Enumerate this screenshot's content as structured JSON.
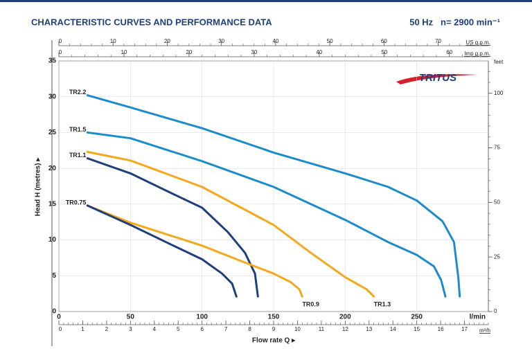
{
  "chart_data": {
    "type": "line",
    "title": "CHARACTERISTIC CURVES AND PERFORMANCE DATA",
    "subtitle": "50 Hz   n= 2900 min⁻¹",
    "logo": "TRITUS",
    "xlabel": "Flow rate Q ▸",
    "ylabel": "Head H (metres) ▸",
    "x_unit": "l/min",
    "xlim": [
      0,
      300
    ],
    "xticks": [
      0,
      50,
      100,
      150,
      200,
      250
    ],
    "ylim": [
      0,
      35
    ],
    "yticks": [
      0,
      5,
      10,
      15,
      20,
      25,
      30,
      35
    ],
    "grid": true,
    "us_axis": {
      "label": "US g.p.m.",
      "lim": [
        0,
        79.26
      ],
      "ticks": [
        0,
        10,
        20,
        30,
        40,
        50,
        60,
        70
      ]
    },
    "imp_axis": {
      "label": "Imp g.p.m.",
      "lim": [
        0,
        65.99
      ],
      "ticks": [
        0,
        10,
        20,
        30,
        40,
        50,
        60
      ]
    },
    "feet_axis": {
      "label": "feet",
      "lim": [
        0,
        114.83
      ],
      "ticks": [
        0,
        25,
        50,
        75,
        100
      ]
    },
    "m3h_axis": {
      "label": "m³/h",
      "lim": [
        0,
        18
      ],
      "ticks": [
        0,
        1,
        2,
        3,
        4,
        5,
        6,
        7,
        8,
        9,
        10,
        11,
        12,
        13,
        14,
        15,
        16,
        17
      ]
    },
    "series": [
      {
        "name": "TR2.2",
        "color": "#1b8bcc",
        "label_position": "start",
        "x": [
          20,
          50,
          100,
          150,
          200,
          230,
          250,
          268,
          276,
          279,
          280
        ],
        "values": [
          30.2,
          28.5,
          25.6,
          22.2,
          19.3,
          17.4,
          15.5,
          12.6,
          9.7,
          4.8,
          2.1
        ]
      },
      {
        "name": "TR1.5",
        "color": "#1b8bcc",
        "label_position": "start",
        "x": [
          20,
          50,
          100,
          150,
          200,
          230,
          250,
          262,
          267,
          270
        ],
        "values": [
          25.0,
          24.2,
          21.0,
          17.4,
          12.8,
          9.7,
          7.9,
          6.3,
          4.4,
          2.1
        ]
      },
      {
        "name": "TR1.3",
        "color": "#f5a81c",
        "label_position": "end",
        "x": [
          20,
          50,
          100,
          150,
          176,
          200,
          215,
          220
        ],
        "values": [
          22.3,
          21.1,
          17.4,
          12.1,
          8.2,
          4.8,
          3.1,
          2.1
        ]
      },
      {
        "name": "TR1.1",
        "color": "#1d3f7c",
        "label_position": "start",
        "x": [
          20,
          50,
          80,
          100,
          118,
          130,
          137,
          139
        ],
        "values": [
          21.4,
          19.3,
          16.4,
          14.5,
          11.1,
          8.2,
          5.3,
          2.1
        ]
      },
      {
        "name": "TR0.9",
        "color": "#f5a81c",
        "label_position": "end",
        "x": [
          20,
          50,
          100,
          128,
          150,
          162,
          168,
          170
        ],
        "values": [
          14.8,
          12.4,
          9.2,
          7.0,
          5.3,
          4.1,
          3.1,
          2.1
        ]
      },
      {
        "name": "TR0.75",
        "color": "#1d3f7c",
        "label_position": "start",
        "x": [
          20,
          50,
          80,
          100,
          114,
          121,
          124
        ],
        "values": [
          14.8,
          12.1,
          9.2,
          7.3,
          5.3,
          3.9,
          2.1
        ]
      }
    ]
  }
}
